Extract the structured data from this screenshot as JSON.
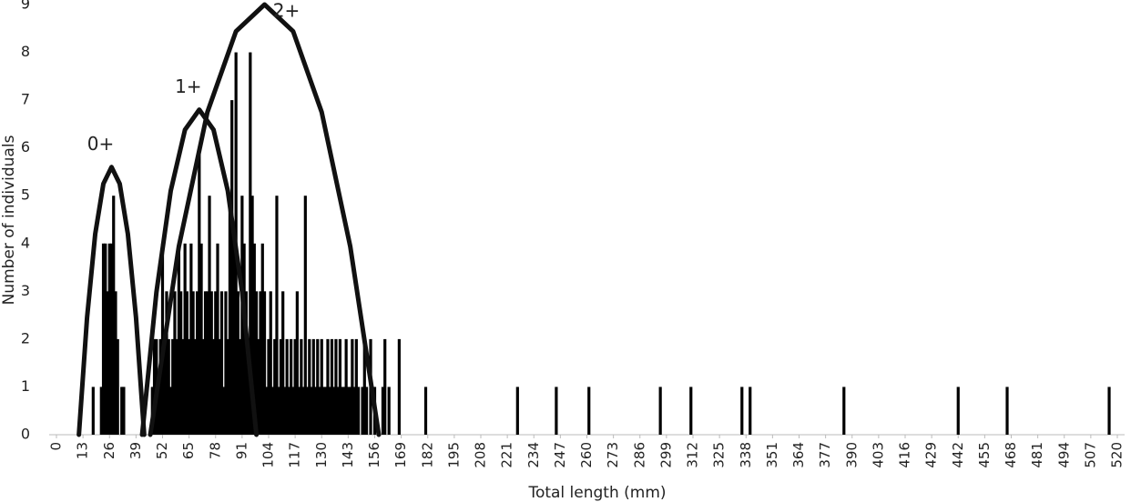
{
  "chart_data": {
    "type": "bar",
    "x_label": "Total length (mm)",
    "y_label": "Number of individuals",
    "x": [
      18,
      22,
      23,
      24,
      25,
      26,
      27,
      28,
      29,
      30,
      32,
      33,
      47,
      48,
      49,
      50,
      51,
      52,
      53,
      54,
      55,
      56,
      57,
      58,
      59,
      60,
      61,
      62,
      63,
      64,
      65,
      66,
      67,
      68,
      69,
      70,
      71,
      72,
      73,
      74,
      75,
      76,
      77,
      78,
      79,
      80,
      81,
      82,
      83,
      84,
      85,
      86,
      87,
      88,
      89,
      90,
      91,
      92,
      93,
      94,
      95,
      96,
      97,
      98,
      99,
      100,
      101,
      102,
      103,
      104,
      105,
      106,
      107,
      108,
      109,
      110,
      111,
      112,
      113,
      114,
      115,
      116,
      117,
      118,
      119,
      120,
      121,
      122,
      123,
      124,
      125,
      126,
      127,
      128,
      129,
      130,
      131,
      132,
      133,
      134,
      135,
      136,
      137,
      138,
      139,
      140,
      141,
      142,
      143,
      144,
      145,
      146,
      147,
      148,
      150,
      151,
      152,
      154,
      156,
      160,
      161,
      163,
      168,
      181,
      226,
      245,
      261,
      296,
      311,
      336,
      340,
      386,
      442,
      466,
      516
    ],
    "values": [
      1,
      1,
      4,
      4,
      3,
      4,
      4,
      5,
      3,
      2,
      1,
      1,
      1,
      2,
      2,
      1,
      2,
      4,
      2,
      3,
      2,
      1,
      2,
      3,
      2,
      4,
      3,
      2,
      4,
      3,
      2,
      4,
      3,
      2,
      3,
      6,
      4,
      2,
      3,
      3,
      5,
      3,
      2,
      3,
      4,
      2,
      3,
      1,
      3,
      2,
      5,
      7,
      4,
      8,
      3,
      2,
      5,
      4,
      3,
      2,
      8,
      5,
      4,
      3,
      2,
      3,
      4,
      3,
      1,
      2,
      3,
      1,
      2,
      5,
      1,
      2,
      3,
      1,
      2,
      1,
      2,
      1,
      2,
      3,
      1,
      2,
      1,
      5,
      1,
      2,
      1,
      2,
      1,
      2,
      1,
      2,
      1,
      1,
      2,
      1,
      2,
      1,
      2,
      1,
      2,
      1,
      1,
      2,
      1,
      1,
      2,
      1,
      2,
      1,
      1,
      2,
      1,
      2,
      1,
      1,
      2,
      1,
      2,
      1,
      1,
      1,
      1,
      1,
      1,
      1,
      1,
      1,
      1,
      1,
      1
    ],
    "color": "#000000",
    "curves": [
      {
        "name": "0+",
        "x": [
          11,
          15,
          19,
          23,
          27,
          31,
          35,
          39,
          43
        ],
        "values": [
          0,
          2.45,
          4.2,
          5.25,
          5.6,
          5.25,
          4.2,
          2.45,
          0
        ]
      },
      {
        "name": "1+",
        "x": [
          42,
          49,
          56,
          63,
          70,
          77,
          84,
          91,
          98
        ],
        "values": [
          0,
          2.98,
          5.1,
          6.38,
          6.8,
          6.38,
          5.1,
          2.98,
          0
        ]
      },
      {
        "name": "2+",
        "x": [
          46,
          60,
          74,
          88,
          102,
          116,
          130,
          144,
          158
        ],
        "values": [
          0,
          3.94,
          6.75,
          8.44,
          9.0,
          8.44,
          6.75,
          3.94,
          0
        ]
      }
    ],
    "xlim": [
      0,
      520
    ],
    "xticks": [
      0,
      13,
      26,
      39,
      52,
      65,
      78,
      91,
      104,
      117,
      130,
      143,
      156,
      169,
      182,
      195,
      208,
      221,
      234,
      247,
      260,
      273,
      286,
      299,
      312,
      325,
      338,
      351,
      364,
      377,
      390,
      403,
      416,
      429,
      442,
      455,
      468,
      481,
      494,
      507,
      520
    ],
    "ylim": [
      0,
      9
    ],
    "yticks": [
      0,
      1,
      2,
      3,
      4,
      5,
      6,
      7,
      8,
      9
    ]
  }
}
